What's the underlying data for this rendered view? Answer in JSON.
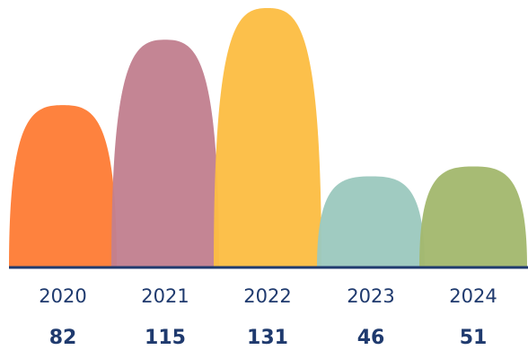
{
  "chart_data": {
    "type": "bar",
    "categories": [
      "2020",
      "2021",
      "2022",
      "2023",
      "2024"
    ],
    "values": [
      82,
      115,
      131,
      46,
      51
    ],
    "colors": [
      "#FE7D36",
      "#C28090",
      "#FCBD44",
      "#9CC9BE",
      "#A3B86E"
    ],
    "title": "",
    "xlabel": "",
    "ylabel": "",
    "ylim": [
      0,
      131
    ],
    "grid": false,
    "legend": "none",
    "label_color": "#1F3A6E",
    "baseline_color": "#1F3A6E"
  }
}
